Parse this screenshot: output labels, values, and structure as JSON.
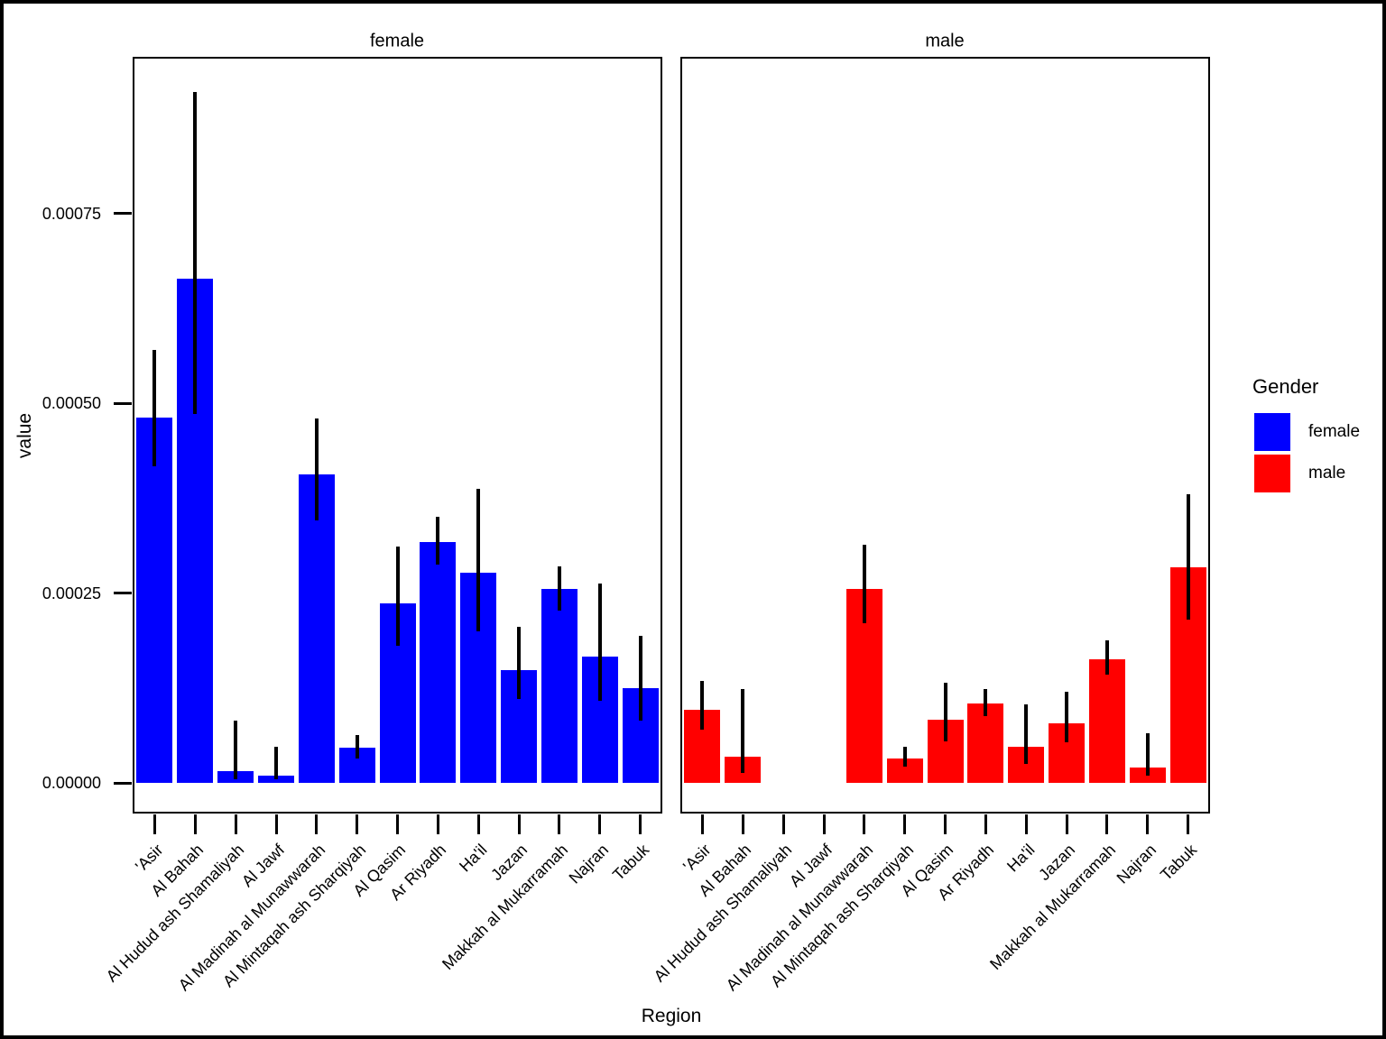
{
  "chart_data": {
    "type": "bar",
    "faceted_by": "Gender",
    "xlabel": "Region",
    "ylabel": "value",
    "grid": false,
    "categories": [
      "'Asir",
      "Al Bahah",
      "Al Hudud ash Shamaliyah",
      "Al Jawf",
      "Al Madinah al Munawwarah",
      "Al Mintaqah ash Sharqiyah",
      "Al Qasim",
      "Ar Riyadh",
      "Ha'il",
      "Jazan",
      "Makkah al Mukarramah",
      "Najran",
      "Tabuk"
    ],
    "yticks": [
      0.0,
      0.00025,
      0.0005,
      0.00075
    ],
    "ytick_labels": [
      "0.00000",
      "0.00025",
      "0.00050",
      "0.00075"
    ],
    "ylim": [
      -3.8e-05,
      0.000955
    ],
    "error_bars": true,
    "legend": {
      "title": "Gender",
      "position": "right",
      "entries": [
        {
          "label": "female",
          "color": "#0000ff"
        },
        {
          "label": "male",
          "color": "#ff0000"
        }
      ]
    },
    "facets": [
      {
        "label": "female",
        "color": "#0000ff",
        "values": [
          0.000481,
          0.000664,
          1.6e-05,
          1e-05,
          0.000406,
          4.6e-05,
          0.000236,
          0.000317,
          0.000277,
          0.000149,
          0.000255,
          0.000167,
          0.000125
        ],
        "err_low": [
          0.000417,
          0.000486,
          5e-06,
          5e-06,
          0.000346,
          3.2e-05,
          0.000181,
          0.000288,
          0.0002,
          0.000111,
          0.000227,
          0.000108,
          8.2e-05
        ],
        "err_high": [
          0.00057,
          0.00091,
          8.2e-05,
          4.8e-05,
          0.00048,
          6.3e-05,
          0.000311,
          0.000351,
          0.000387,
          0.000206,
          0.000285,
          0.000263,
          0.000194
        ]
      },
      {
        "label": "male",
        "color": "#ff0000",
        "values": [
          9.6e-05,
          3.5e-05,
          null,
          null,
          0.000256,
          3.2e-05,
          8.3e-05,
          0.000105,
          4.8e-05,
          7.9e-05,
          0.000163,
          2e-05,
          0.000284
        ],
        "err_low": [
          7e-05,
          1.3e-05,
          null,
          null,
          0.00021,
          2.1e-05,
          5.5e-05,
          8.8e-05,
          2.5e-05,
          5.4e-05,
          0.000143,
          9e-06,
          0.000215
        ],
        "err_high": [
          0.000134,
          0.000124,
          null,
          null,
          0.000314,
          4.8e-05,
          0.000132,
          0.000124,
          0.000104,
          0.00012,
          0.000188,
          6.5e-05,
          0.00038
        ]
      }
    ]
  }
}
